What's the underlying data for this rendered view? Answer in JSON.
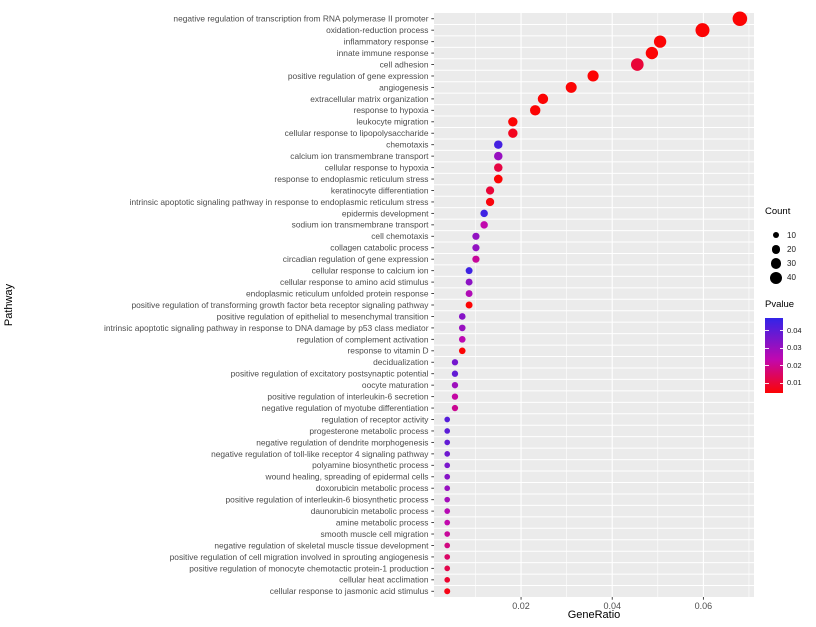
{
  "figure": {
    "background": "#FFFFFF",
    "panel_background": "#EBEBEB",
    "gridline_color": "#FFFFFF",
    "axis_text_color": "#4D4D4D",
    "tick_mark_color": "#333333"
  },
  "chart_data": {
    "type": "scatter",
    "title": "",
    "xlabel": "GeneRatio",
    "ylabel": "Pathway",
    "x_ticks": [
      0.02,
      0.04,
      0.06
    ],
    "x_tick_labels": [
      "0.02",
      "0.04",
      "0.06"
    ],
    "x_minor_ticks": [
      0.01,
      0.03,
      0.05,
      0.07
    ],
    "xlim": [
      0.0009,
      0.0711
    ],
    "grid": true,
    "legend_position": "right",
    "legend": {
      "count": {
        "title": "Count",
        "sizes": [
          10,
          20,
          30,
          40
        ],
        "size_labels": [
          "10",
          "20",
          "30",
          "40"
        ],
        "dot_color": "#000000"
      },
      "pvalue": {
        "title": "Pvalue",
        "tick_values": [
          0.04,
          0.03,
          0.02,
          0.01
        ],
        "tick_labels": [
          "0.04",
          "0.03",
          "0.02",
          "0.01"
        ],
        "scale_min": 0.004,
        "scale_max": 0.047,
        "low_color": "#FC0404",
        "mid_color": "#C008B0",
        "high_color": "#3224E8",
        "mid_position": 0.45
      }
    },
    "points": [
      {
        "pathway": "negative regulation of transcription from RNA polymerase II promoter",
        "gene_ratio": 0.068,
        "count": 53,
        "pvalue": 0.001
      },
      {
        "pathway": "oxidation-reduction process",
        "gene_ratio": 0.0598,
        "count": 49,
        "pvalue": 0.001
      },
      {
        "pathway": "inflammatory response",
        "gene_ratio": 0.0505,
        "count": 38,
        "pvalue": 0.002
      },
      {
        "pathway": "innate immune response",
        "gene_ratio": 0.0487,
        "count": 38,
        "pvalue": 0.002
      },
      {
        "pathway": "cell adhesion",
        "gene_ratio": 0.0455,
        "count": 40,
        "pvalue": 0.01
      },
      {
        "pathway": "positive regulation of gene expression",
        "gene_ratio": 0.0358,
        "count": 31,
        "pvalue": 0.002
      },
      {
        "pathway": "angiogenesis",
        "gene_ratio": 0.031,
        "count": 30,
        "pvalue": 0.002
      },
      {
        "pathway": "extracellular matrix organization",
        "gene_ratio": 0.0248,
        "count": 27,
        "pvalue": 0.003
      },
      {
        "pathway": "response to hypoxia",
        "gene_ratio": 0.0231,
        "count": 27,
        "pvalue": 0.004
      },
      {
        "pathway": "leukocyte migration",
        "gene_ratio": 0.0182,
        "count": 22,
        "pvalue": 0.004
      },
      {
        "pathway": "cellular response to lipopolysaccharide",
        "gene_ratio": 0.0182,
        "count": 22,
        "pvalue": 0.007
      },
      {
        "pathway": "chemotaxis",
        "gene_ratio": 0.015,
        "count": 18,
        "pvalue": 0.044
      },
      {
        "pathway": "calcium ion transmembrane transport",
        "gene_ratio": 0.015,
        "count": 18,
        "pvalue": 0.03
      },
      {
        "pathway": "cellular response to hypoxia",
        "gene_ratio": 0.015,
        "count": 18,
        "pvalue": 0.011
      },
      {
        "pathway": "response to endoplasmic reticulum stress",
        "gene_ratio": 0.015,
        "count": 19,
        "pvalue": 0.003
      },
      {
        "pathway": "keratinocyte differentiation",
        "gene_ratio": 0.0132,
        "count": 17,
        "pvalue": 0.01
      },
      {
        "pathway": "intrinsic apoptotic signaling pathway in response to endoplasmic reticulum stress",
        "gene_ratio": 0.0132,
        "count": 17,
        "pvalue": 0.005
      },
      {
        "pathway": "epidermis development",
        "gene_ratio": 0.0119,
        "count": 14,
        "pvalue": 0.045
      },
      {
        "pathway": "sodium ion transmembrane transport",
        "gene_ratio": 0.0119,
        "count": 14,
        "pvalue": 0.023
      },
      {
        "pathway": "cell chemotaxis",
        "gene_ratio": 0.0101,
        "count": 13,
        "pvalue": 0.031
      },
      {
        "pathway": "collagen catabolic process",
        "gene_ratio": 0.0101,
        "count": 13,
        "pvalue": 0.031
      },
      {
        "pathway": "circadian regulation of gene expression",
        "gene_ratio": 0.0101,
        "count": 13,
        "pvalue": 0.021
      },
      {
        "pathway": "cellular response to calcium ion",
        "gene_ratio": 0.0086,
        "count": 12,
        "pvalue": 0.045
      },
      {
        "pathway": "cellular response to amino acid stimulus",
        "gene_ratio": 0.0086,
        "count": 12,
        "pvalue": 0.032
      },
      {
        "pathway": "endoplasmic reticulum unfolded protein response",
        "gene_ratio": 0.0086,
        "count": 12,
        "pvalue": 0.026
      },
      {
        "pathway": "positive regulation of transforming growth factor beta receptor signaling pathway",
        "gene_ratio": 0.0086,
        "count": 12,
        "pvalue": 0.004
      },
      {
        "pathway": "positive regulation of epithelial to mesenchymal transition",
        "gene_ratio": 0.0071,
        "count": 11,
        "pvalue": 0.033
      },
      {
        "pathway": "intrinsic apoptotic signaling pathway in response to DNA damage by p53 class mediator",
        "gene_ratio": 0.0071,
        "count": 11,
        "pvalue": 0.03
      },
      {
        "pathway": "regulation of complement activation",
        "gene_ratio": 0.0071,
        "count": 11,
        "pvalue": 0.024
      },
      {
        "pathway": "response to vitamin D",
        "gene_ratio": 0.0071,
        "count": 11,
        "pvalue": 0.004
      },
      {
        "pathway": "decidualization",
        "gene_ratio": 0.0055,
        "count": 10,
        "pvalue": 0.036
      },
      {
        "pathway": "positive regulation of excitatory postsynaptic potential",
        "gene_ratio": 0.0055,
        "count": 10,
        "pvalue": 0.039
      },
      {
        "pathway": "oocyte maturation",
        "gene_ratio": 0.0055,
        "count": 10,
        "pvalue": 0.029
      },
      {
        "pathway": "positive regulation of interleukin-6 secretion",
        "gene_ratio": 0.0055,
        "count": 10,
        "pvalue": 0.022
      },
      {
        "pathway": "negative regulation of myotube differentiation",
        "gene_ratio": 0.0055,
        "count": 10,
        "pvalue": 0.02
      },
      {
        "pathway": "regulation of receptor activity",
        "gene_ratio": 0.0038,
        "count": 8,
        "pvalue": 0.041
      },
      {
        "pathway": "progesterone metabolic process",
        "gene_ratio": 0.0038,
        "count": 8,
        "pvalue": 0.04
      },
      {
        "pathway": "negative regulation of dendrite morphogenesis",
        "gene_ratio": 0.0038,
        "count": 8,
        "pvalue": 0.039
      },
      {
        "pathway": "negative regulation of toll-like receptor 4 signaling pathway",
        "gene_ratio": 0.0038,
        "count": 8,
        "pvalue": 0.037
      },
      {
        "pathway": "polyamine biosynthetic process",
        "gene_ratio": 0.0038,
        "count": 8,
        "pvalue": 0.035
      },
      {
        "pathway": "wound healing, spreading of epidermal cells",
        "gene_ratio": 0.0038,
        "count": 8,
        "pvalue": 0.033
      },
      {
        "pathway": "doxorubicin metabolic process",
        "gene_ratio": 0.0038,
        "count": 8,
        "pvalue": 0.03
      },
      {
        "pathway": "positive regulation of interleukin-6 biosynthetic process",
        "gene_ratio": 0.0038,
        "count": 8,
        "pvalue": 0.028
      },
      {
        "pathway": "daunorubicin metabolic process",
        "gene_ratio": 0.0038,
        "count": 8,
        "pvalue": 0.025
      },
      {
        "pathway": "amine metabolic process",
        "gene_ratio": 0.0038,
        "count": 8,
        "pvalue": 0.023
      },
      {
        "pathway": "smooth muscle cell migration",
        "gene_ratio": 0.0038,
        "count": 8,
        "pvalue": 0.021
      },
      {
        "pathway": "negative regulation of skeletal muscle tissue development",
        "gene_ratio": 0.0038,
        "count": 8,
        "pvalue": 0.018
      },
      {
        "pathway": "positive regulation of cell migration involved in sprouting angiogenesis",
        "gene_ratio": 0.0038,
        "count": 8,
        "pvalue": 0.015
      },
      {
        "pathway": "positive regulation of monocyte chemotactic protein-1 production",
        "gene_ratio": 0.0038,
        "count": 8,
        "pvalue": 0.012
      },
      {
        "pathway": "cellular heat acclimation",
        "gene_ratio": 0.0038,
        "count": 8,
        "pvalue": 0.009
      },
      {
        "pathway": "cellular response to jasmonic acid stimulus",
        "gene_ratio": 0.0038,
        "count": 9,
        "pvalue": 0.006
      }
    ]
  }
}
